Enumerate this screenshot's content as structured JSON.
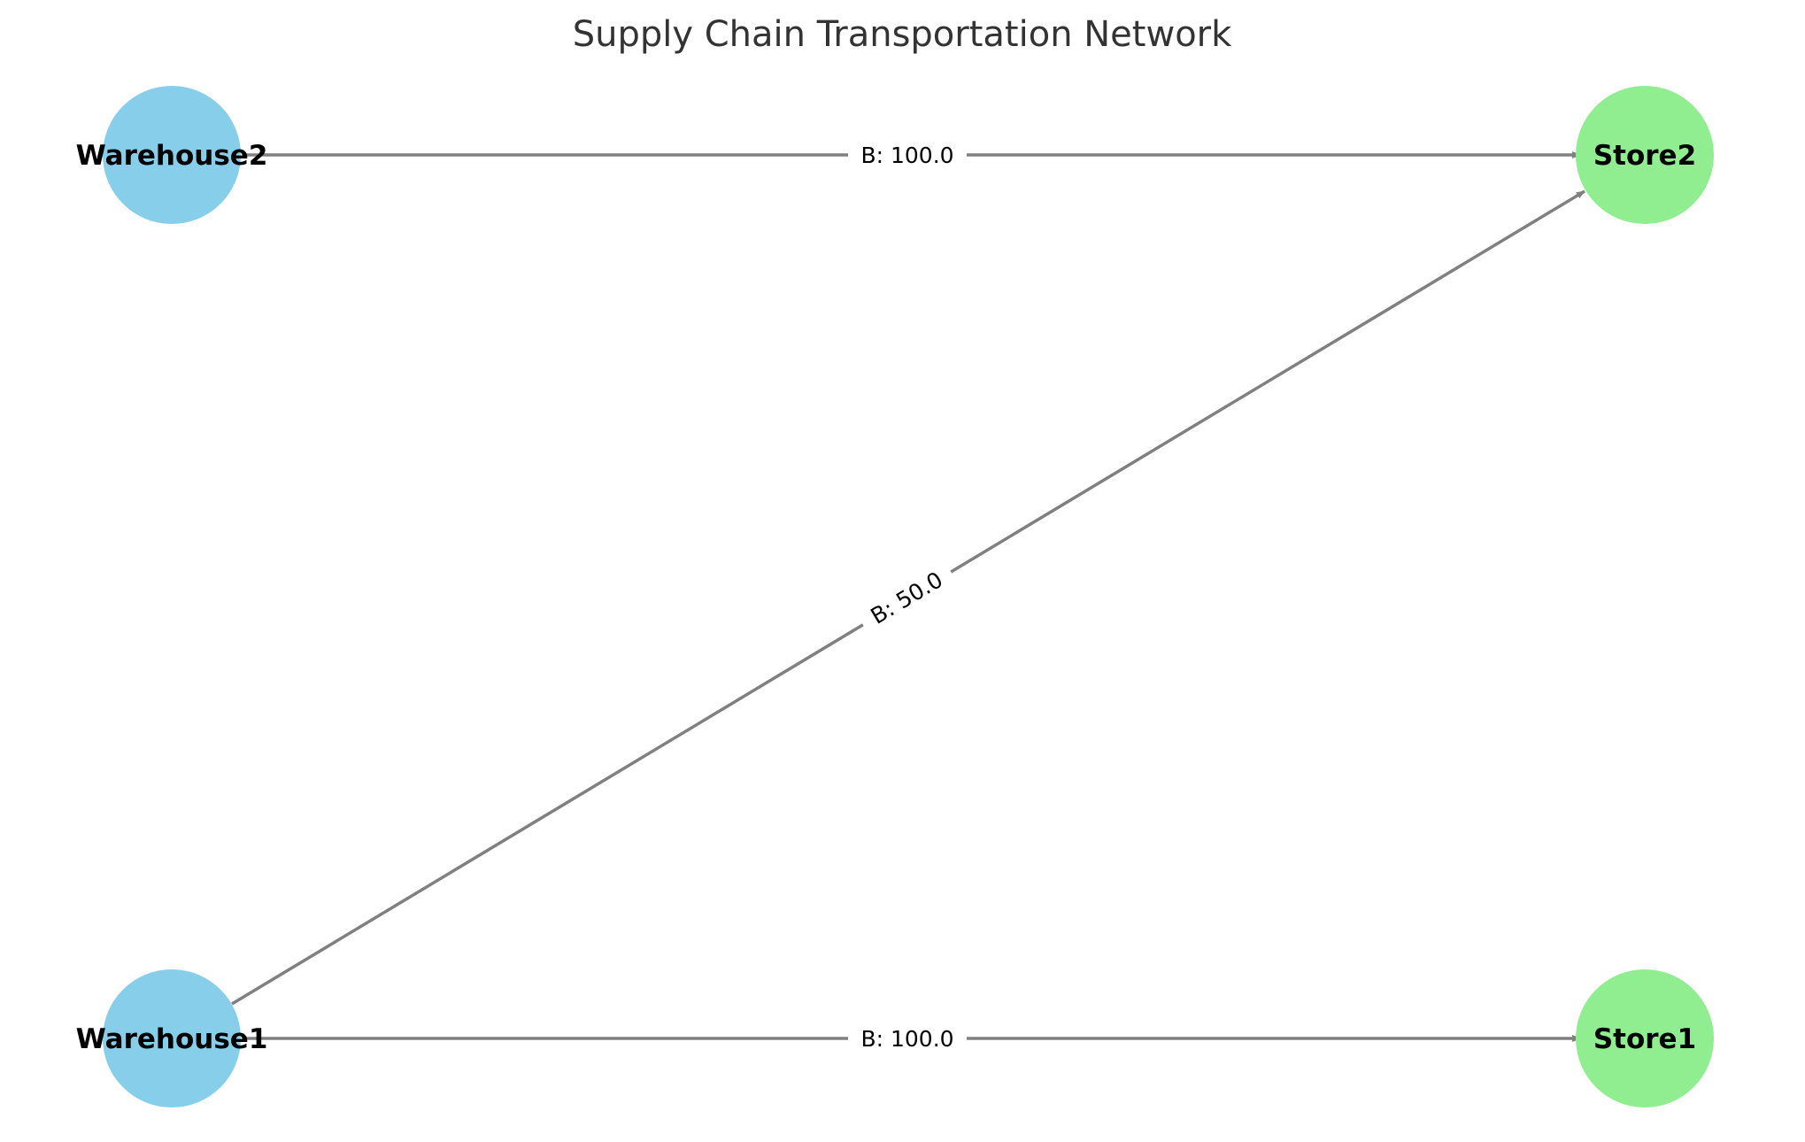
{
  "title": "Supply Chain Transportation Network",
  "colors": {
    "warehouse": "#87ceeb",
    "store": "#90ee90",
    "edge": "#808080",
    "title": "#333333"
  },
  "nodes": [
    {
      "id": "warehouse2",
      "label": "Warehouse2",
      "type": "warehouse"
    },
    {
      "id": "store2",
      "label": "Store2",
      "type": "store"
    },
    {
      "id": "warehouse1",
      "label": "Warehouse1",
      "type": "warehouse"
    },
    {
      "id": "store1",
      "label": "Store1",
      "type": "store"
    }
  ],
  "edges": [
    {
      "id": "w2-s2",
      "from": "warehouse2",
      "to": "store2",
      "label": "B: 100.0"
    },
    {
      "id": "w1-s2",
      "from": "warehouse1",
      "to": "store2",
      "label": "B: 50.0"
    },
    {
      "id": "w1-s1",
      "from": "warehouse1",
      "to": "store1",
      "label": "B: 100.0"
    }
  ]
}
